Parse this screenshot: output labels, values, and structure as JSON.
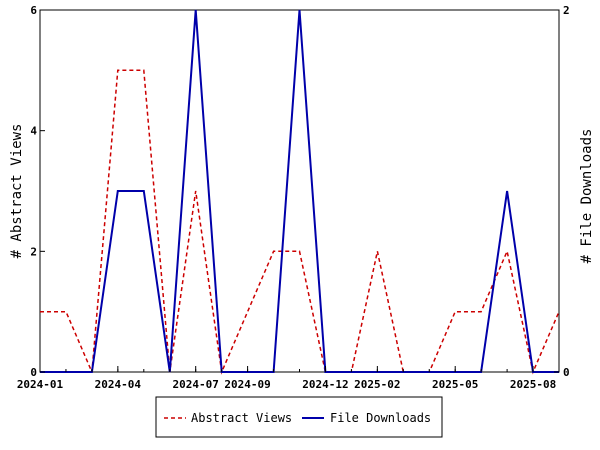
{
  "chart_data": {
    "type": "line",
    "x": [
      "2024-01",
      "2024-02",
      "2024-03",
      "2024-04",
      "2024-05",
      "2024-06",
      "2024-07",
      "2024-08",
      "2024-09",
      "2024-10",
      "2024-11",
      "2024-12",
      "2025-01",
      "2025-02",
      "2025-03",
      "2025-04",
      "2025-05",
      "2025-06",
      "2025-07",
      "2025-08",
      "2025-09"
    ],
    "x_tick_labels": [
      "2024-01",
      "2024-04",
      "2024-07",
      "2024-09",
      "2024-12",
      "2025-02",
      "2025-05",
      "2025-08"
    ],
    "x_tick_indices": [
      0,
      3,
      6,
      8,
      11,
      13,
      16,
      19
    ],
    "y_left": {
      "label": "# Abstract Views",
      "lim": [
        0,
        6
      ],
      "ticks": [
        "0",
        "2",
        "4",
        "6"
      ]
    },
    "y_right": {
      "label": "# File Downloads",
      "lim": [
        0,
        2
      ],
      "ticks": [
        "0",
        "2"
      ]
    },
    "series": [
      {
        "name": "Abstract Views",
        "axis": "left",
        "color": "#cc0000",
        "style": "dashed",
        "values": [
          1,
          1,
          0,
          5,
          5,
          0,
          3,
          0,
          1,
          2,
          2,
          0,
          0,
          2,
          0,
          0,
          1,
          1,
          2,
          0,
          1
        ]
      },
      {
        "name": "File Downloads",
        "axis": "right",
        "color": "#0000aa",
        "style": "solid",
        "values": [
          0,
          0,
          0,
          1,
          1,
          0,
          2,
          0,
          0,
          0,
          2,
          0,
          0,
          0,
          0,
          0,
          0,
          0,
          1,
          0,
          0
        ]
      }
    ],
    "grid": false,
    "legend": "bottom"
  }
}
